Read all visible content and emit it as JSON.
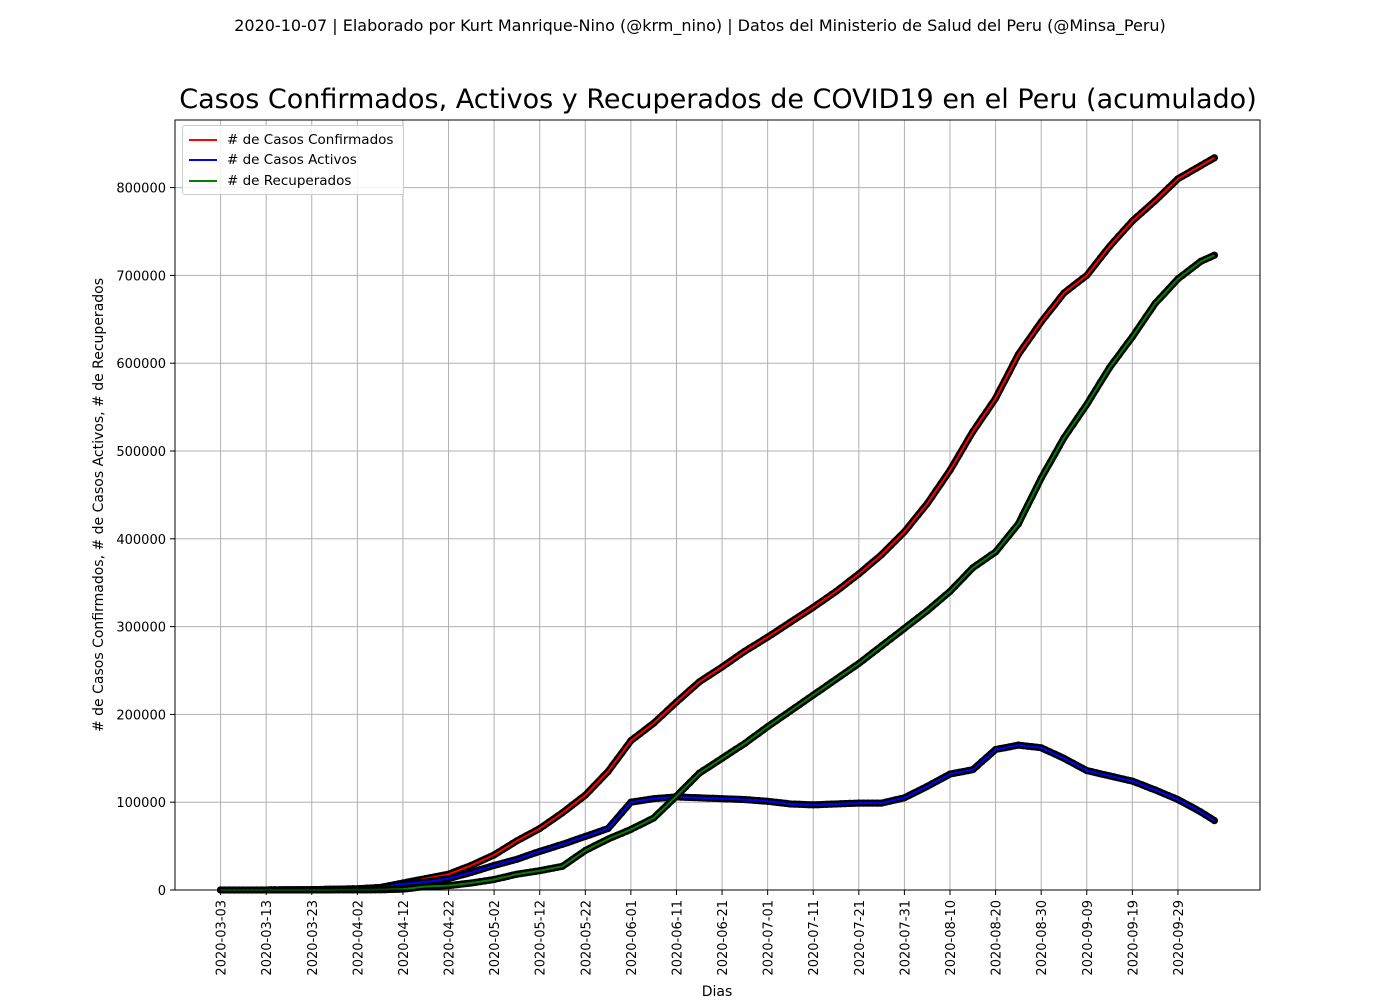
{
  "suptitle": "2020-10-07 | Elaborado por Kurt Manrique-Nino (@krm_nino) | Datos del Ministerio de Salud del Peru (@Minsa_Peru)",
  "chart_data": {
    "type": "line",
    "title": "Casos Confirmados, Activos y Recuperados de COVID19 en el Peru (acumulado)",
    "xlabel": "Dias",
    "ylabel": "# de Casos Confirmados, # de Casos Activos, # de Recuperados",
    "x_start": "2020-03-03",
    "xlim": [
      "2020-02-22",
      "2020-10-17"
    ],
    "ylim": [
      0,
      877000
    ],
    "grid": true,
    "legend_position": "top-left",
    "marker": "circle",
    "marker_color": "#000000",
    "xticks": [
      "2020-03-03",
      "2020-03-13",
      "2020-03-23",
      "2020-04-02",
      "2020-04-12",
      "2020-04-22",
      "2020-05-02",
      "2020-05-12",
      "2020-05-22",
      "2020-06-01",
      "2020-06-11",
      "2020-06-21",
      "2020-07-01",
      "2020-07-11",
      "2020-07-21",
      "2020-07-31",
      "2020-08-10",
      "2020-08-20",
      "2020-08-30",
      "2020-09-09",
      "2020-09-19",
      "2020-09-29"
    ],
    "yticks": [
      "0",
      "100000",
      "200000",
      "300000",
      "400000",
      "500000",
      "600000",
      "700000",
      "800000"
    ],
    "series": [
      {
        "name": "# de Casos Confirmados",
        "color": "#ff0000",
        "points": [
          [
            "2020-03-03",
            0
          ],
          [
            "2020-03-13",
            40
          ],
          [
            "2020-03-23",
            400
          ],
          [
            "2020-04-02",
            1400
          ],
          [
            "2020-04-07",
            2900
          ],
          [
            "2020-04-12",
            8000
          ],
          [
            "2020-04-17",
            13000
          ],
          [
            "2020-04-22",
            18000
          ],
          [
            "2020-04-27",
            28000
          ],
          [
            "2020-05-02",
            40000
          ],
          [
            "2020-05-07",
            56000
          ],
          [
            "2020-05-12",
            70000
          ],
          [
            "2020-05-17",
            88000
          ],
          [
            "2020-05-22",
            108000
          ],
          [
            "2020-05-27",
            135000
          ],
          [
            "2020-06-01",
            170000
          ],
          [
            "2020-06-06",
            190000
          ],
          [
            "2020-06-11",
            214000
          ],
          [
            "2020-06-16",
            237000
          ],
          [
            "2020-06-21",
            254000
          ],
          [
            "2020-06-26",
            272000
          ],
          [
            "2020-07-01",
            288000
          ],
          [
            "2020-07-06",
            305000
          ],
          [
            "2020-07-11",
            322000
          ],
          [
            "2020-07-16",
            340000
          ],
          [
            "2020-07-21",
            360000
          ],
          [
            "2020-07-26",
            382000
          ],
          [
            "2020-07-31",
            408000
          ],
          [
            "2020-08-05",
            440000
          ],
          [
            "2020-08-10",
            478000
          ],
          [
            "2020-08-15",
            522000
          ],
          [
            "2020-08-20",
            560000
          ],
          [
            "2020-08-25",
            610000
          ],
          [
            "2020-08-30",
            647000
          ],
          [
            "2020-09-04",
            680000
          ],
          [
            "2020-09-09",
            700000
          ],
          [
            "2020-09-14",
            733000
          ],
          [
            "2020-09-19",
            762000
          ],
          [
            "2020-09-24",
            785000
          ],
          [
            "2020-09-29",
            810000
          ],
          [
            "2020-10-04",
            825000
          ],
          [
            "2020-10-07",
            834000
          ]
        ]
      },
      {
        "name": "# de Casos Activos",
        "color": "#0000ff",
        "points": [
          [
            "2020-03-03",
            0
          ],
          [
            "2020-03-13",
            40
          ],
          [
            "2020-03-23",
            380
          ],
          [
            "2020-04-02",
            1300
          ],
          [
            "2020-04-07",
            2700
          ],
          [
            "2020-04-12",
            7000
          ],
          [
            "2020-04-17",
            9000
          ],
          [
            "2020-04-22",
            13000
          ],
          [
            "2020-04-27",
            20000
          ],
          [
            "2020-05-02",
            28000
          ],
          [
            "2020-05-07",
            35000
          ],
          [
            "2020-05-12",
            44000
          ],
          [
            "2020-05-17",
            52000
          ],
          [
            "2020-05-22",
            61000
          ],
          [
            "2020-05-27",
            70000
          ],
          [
            "2020-06-01",
            100000
          ],
          [
            "2020-06-06",
            104000
          ],
          [
            "2020-06-11",
            106000
          ],
          [
            "2020-06-16",
            105000
          ],
          [
            "2020-06-21",
            104000
          ],
          [
            "2020-06-26",
            103000
          ],
          [
            "2020-07-01",
            101000
          ],
          [
            "2020-07-06",
            98000
          ],
          [
            "2020-07-11",
            97000
          ],
          [
            "2020-07-16",
            98000
          ],
          [
            "2020-07-21",
            99000
          ],
          [
            "2020-07-26",
            99000
          ],
          [
            "2020-07-31",
            105000
          ],
          [
            "2020-08-05",
            118000
          ],
          [
            "2020-08-10",
            132000
          ],
          [
            "2020-08-15",
            137000
          ],
          [
            "2020-08-20",
            160000
          ],
          [
            "2020-08-25",
            165000
          ],
          [
            "2020-08-30",
            162000
          ],
          [
            "2020-09-04",
            150000
          ],
          [
            "2020-09-09",
            136000
          ],
          [
            "2020-09-14",
            130000
          ],
          [
            "2020-09-19",
            124000
          ],
          [
            "2020-09-24",
            114000
          ],
          [
            "2020-09-29",
            103000
          ],
          [
            "2020-10-04",
            89000
          ],
          [
            "2020-10-07",
            79000
          ]
        ]
      },
      {
        "name": "# de Recuperados",
        "color": "#008000",
        "points": [
          [
            "2020-03-03",
            0
          ],
          [
            "2020-03-13",
            0
          ],
          [
            "2020-03-23",
            20
          ],
          [
            "2020-04-02",
            100
          ],
          [
            "2020-04-07",
            200
          ],
          [
            "2020-04-12",
            1000
          ],
          [
            "2020-04-17",
            4000
          ],
          [
            "2020-04-22",
            5000
          ],
          [
            "2020-04-27",
            8000
          ],
          [
            "2020-05-02",
            12000
          ],
          [
            "2020-05-07",
            18000
          ],
          [
            "2020-05-12",
            22000
          ],
          [
            "2020-05-17",
            27000
          ],
          [
            "2020-05-22",
            45000
          ],
          [
            "2020-05-27",
            58000
          ],
          [
            "2020-06-01",
            69000
          ],
          [
            "2020-06-06",
            82000
          ],
          [
            "2020-06-11",
            107000
          ],
          [
            "2020-06-16",
            133000
          ],
          [
            "2020-06-21",
            150000
          ],
          [
            "2020-06-26",
            167000
          ],
          [
            "2020-07-01",
            186000
          ],
          [
            "2020-07-06",
            204000
          ],
          [
            "2020-07-11",
            222000
          ],
          [
            "2020-07-16",
            240000
          ],
          [
            "2020-07-21",
            258000
          ],
          [
            "2020-07-26",
            278000
          ],
          [
            "2020-07-31",
            298000
          ],
          [
            "2020-08-05",
            318000
          ],
          [
            "2020-08-10",
            340000
          ],
          [
            "2020-08-15",
            367000
          ],
          [
            "2020-08-20",
            385000
          ],
          [
            "2020-08-25",
            417000
          ],
          [
            "2020-08-30",
            469000
          ],
          [
            "2020-09-04",
            515000
          ],
          [
            "2020-09-09",
            553000
          ],
          [
            "2020-09-14",
            595000
          ],
          [
            "2020-09-19",
            630000
          ],
          [
            "2020-09-24",
            668000
          ],
          [
            "2020-09-29",
            696000
          ],
          [
            "2020-10-04",
            716000
          ],
          [
            "2020-10-07",
            723000
          ]
        ]
      }
    ]
  }
}
